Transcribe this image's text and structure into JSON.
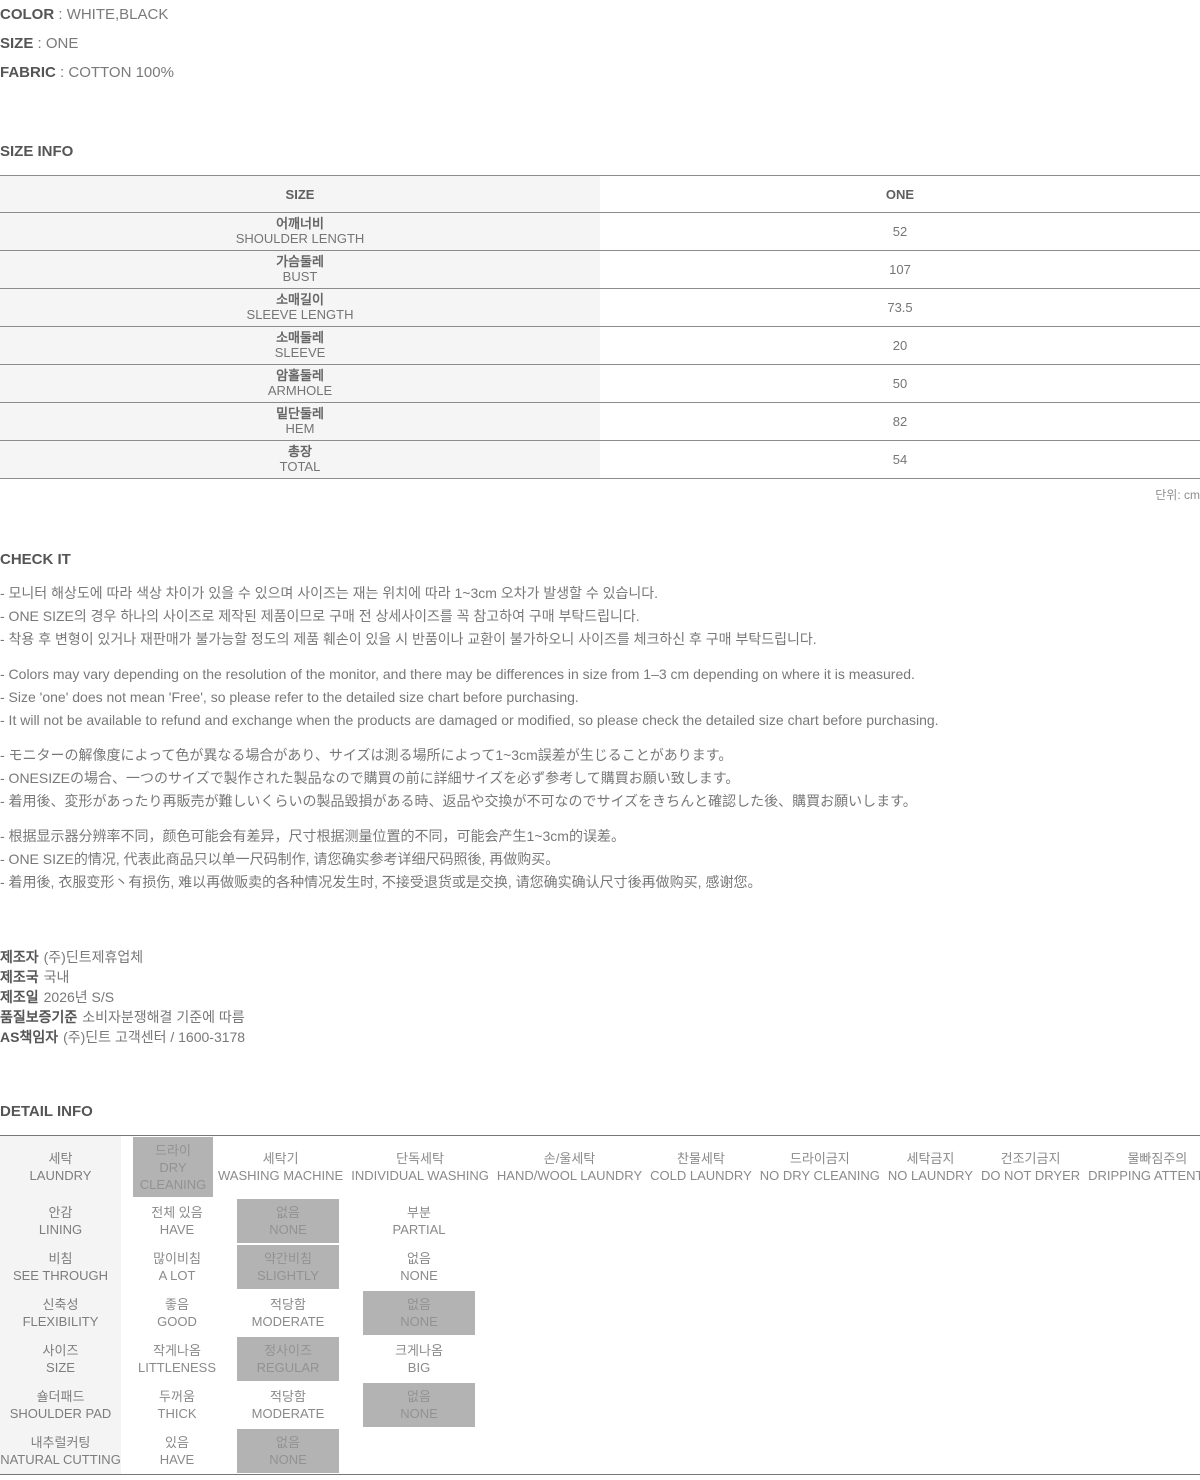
{
  "product": {
    "sep": " : ",
    "attrs": [
      {
        "label": "COLOR",
        "value": "WHITE,BLACK"
      },
      {
        "label": "SIZE",
        "value": "ONE"
      },
      {
        "label": "FABRIC",
        "value": "COTTON 100%"
      }
    ]
  },
  "size_info": {
    "heading": "SIZE INFO",
    "col_size": "SIZE",
    "col_one": "ONE",
    "rows": [
      {
        "kr": "어깨너비",
        "en": "SHOULDER LENGTH",
        "value": "52"
      },
      {
        "kr": "가슴둘레",
        "en": "BUST",
        "value": "107"
      },
      {
        "kr": "소매길이",
        "en": "SLEEVE LENGTH",
        "value": "73.5"
      },
      {
        "kr": "소매둘레",
        "en": "SLEEVE",
        "value": "20"
      },
      {
        "kr": "암홀둘레",
        "en": "ARMHOLE",
        "value": "50"
      },
      {
        "kr": "밑단둘레",
        "en": "HEM",
        "value": "82"
      },
      {
        "kr": "총장",
        "en": "TOTAL",
        "value": "54"
      }
    ],
    "unit_note": "단위: cm"
  },
  "check_it": {
    "heading": "CHECK IT",
    "kr": [
      "- 모니터 해상도에 따라 색상 차이가 있을 수 있으며 사이즈는 재는 위치에 따라 1~3cm 오차가 발생할 수 있습니다.",
      "- ONE SIZE의 경우 하나의 사이즈로 제작된 제품이므로 구매 전 상세사이즈를 꼭 참고하여 구매 부탁드립니다.",
      "- 착용 후 변형이 있거나 재판매가 불가능할 정도의 제품 훼손이 있을 시 반품이나 교환이 불가하오니 사이즈를 체크하신 후 구매 부탁드립니다."
    ],
    "en": [
      "- Colors may vary depending on the resolution of the monitor, and there may be differences in size from 1–3 cm depending on where it is measured.",
      "- Size 'one' does not mean 'Free', so please refer to the detailed size chart before purchasing.",
      "- It will not be available to refund and exchange when the products are damaged or modified, so please check the detailed size chart before purchasing."
    ],
    "jp": [
      "- モニターの解像度によって色が異なる場合があり、サイズは測る場所によって1~3cm誤差が生じることがあります。",
      "- ONESIZEの場合、一つのサイズで製作された製品なので購買の前に詳細サイズを必ず参考して購買お願い致します。",
      "- 着用後、変形があったり再販売が難しいくらいの製品毀損がある時、返品や交換が不可なのでサイズをきちんと確認した後、購買お願いします。"
    ],
    "cn": [
      "- 根据显示器分辨率不同，颜色可能会有差异，尺寸根据测量位置的不同，可能会产生1~3cm的误差。",
      "- ONE SIZE的情况, 代表此商品只以单一尺码制作, 请您确实参考详细尺码照後, 再做购买。",
      "- 着用後, 衣服变形丶有损伤, 难以再做贩卖的各种情况发生时, 不接受退货或是交换, 请您确实确认尺寸後再做购买, 感谢您。"
    ]
  },
  "manufacturer": {
    "lines": [
      {
        "label": "제조자",
        "value": "(주)딘트제휴업체"
      },
      {
        "label": "제조국",
        "value": "국내"
      },
      {
        "label": "제조일",
        "value": "2026년 S/S"
      },
      {
        "label": "품질보증기준",
        "value": "소비자분쟁해결 기준에 따름"
      },
      {
        "label": "AS책임자",
        "value": "(주)딘트 고객센터 / 1600-3178"
      }
    ]
  },
  "detail_info": {
    "heading": "DETAIL INFO",
    "highlight_color": "#b3b3b3",
    "rows": [
      {
        "kr": "세탁",
        "en": "LAUNDRY",
        "options": [
          {
            "kr": "드라이",
            "en": "DRY CLEANING",
            "selected": true
          },
          {
            "kr": "세탁기",
            "en": "WASHING MACHINE",
            "selected": false
          },
          {
            "kr": "단독세탁",
            "en": "INDIVIDUAL WASHING",
            "selected": false
          },
          {
            "kr": "손/울세탁",
            "en": "HAND/WOOL LAUNDRY",
            "selected": false
          },
          {
            "kr": "찬물세탁",
            "en": "COLD LAUNDRY",
            "selected": false
          },
          {
            "kr": "드라이금지",
            "en": "NO DRY CLEANING",
            "selected": false
          },
          {
            "kr": "세탁금지",
            "en": "NO LAUNDRY",
            "selected": false
          },
          {
            "kr": "건조기금지",
            "en": "DO NOT DRYER",
            "selected": false
          },
          {
            "kr": "물빠짐주의",
            "en": "DRIPPING ATTENTION",
            "selected": false
          }
        ]
      },
      {
        "kr": "안감",
        "en": "LINING",
        "options": [
          {
            "kr": "전체 있음",
            "en": "HAVE",
            "selected": false
          },
          {
            "kr": "없음",
            "en": "NONE",
            "selected": true
          },
          {
            "kr": "부분",
            "en": "PARTIAL",
            "selected": false
          }
        ]
      },
      {
        "kr": "비침",
        "en": "SEE THROUGH",
        "options": [
          {
            "kr": "많이비침",
            "en": "A LOT",
            "selected": false
          },
          {
            "kr": "약간비침",
            "en": "SLIGHTLY",
            "selected": true
          },
          {
            "kr": "없음",
            "en": "NONE",
            "selected": false
          }
        ]
      },
      {
        "kr": "신축성",
        "en": "FLEXIBILITY",
        "options": [
          {
            "kr": "좋음",
            "en": "GOOD",
            "selected": false
          },
          {
            "kr": "적당함",
            "en": "MODERATE",
            "selected": false
          },
          {
            "kr": "없음",
            "en": "NONE",
            "selected": true
          }
        ]
      },
      {
        "kr": "사이즈",
        "en": "SIZE",
        "options": [
          {
            "kr": "작게나옴",
            "en": "LITTLENESS",
            "selected": false
          },
          {
            "kr": "정사이즈",
            "en": "REGULAR",
            "selected": true
          },
          {
            "kr": "크게나옴",
            "en": "BIG",
            "selected": false
          }
        ]
      },
      {
        "kr": "숄더패드",
        "en": "SHOULDER PAD",
        "options": [
          {
            "kr": "두꺼움",
            "en": "THICK",
            "selected": false
          },
          {
            "kr": "적당함",
            "en": "MODERATE",
            "selected": false
          },
          {
            "kr": "없음",
            "en": "NONE",
            "selected": true
          }
        ]
      },
      {
        "kr": "내추럴커팅",
        "en": "NATURAL CUTTING",
        "options": [
          {
            "kr": "있음",
            "en": "HAVE",
            "selected": false
          },
          {
            "kr": "없음",
            "en": "NONE",
            "selected": true
          }
        ]
      }
    ]
  }
}
